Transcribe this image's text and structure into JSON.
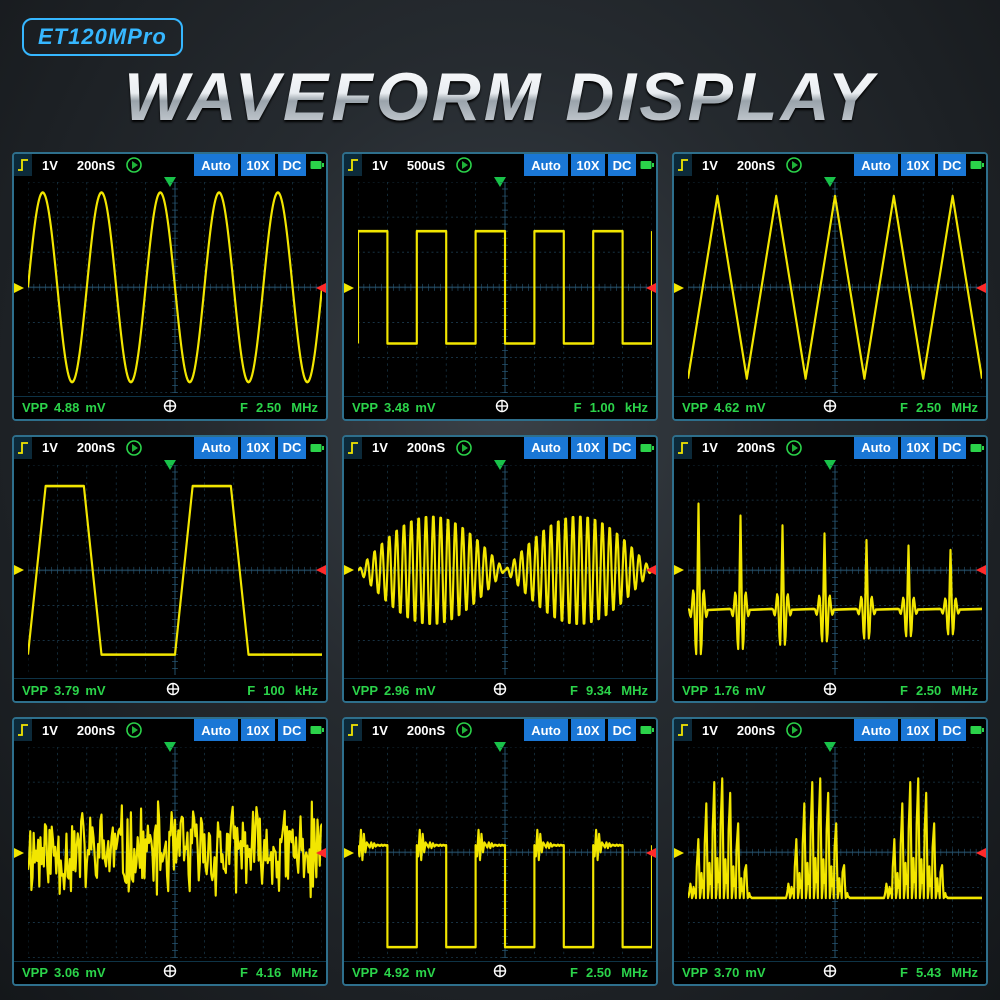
{
  "model_badge": "ET120MPro",
  "main_title": "WAVEFORM DISPLAY",
  "colors": {
    "background_gradient": [
      "#3a4148",
      "#262b30",
      "#14171a"
    ],
    "badge": "#36b7ff",
    "scope_border": "#2e6f8c",
    "scope_bg": "#000000",
    "grid_line": "#1b3a4d",
    "axis_tick": "#2a5a78",
    "waveform": "#f2e600",
    "topbar_pill": "#1a77d6",
    "topbar_text": "#ffffff",
    "readout": "#2bd34a",
    "play_outline": "#2bd34a",
    "play_fill": "#1fb038",
    "battery": "#2bd34a",
    "trigger_marker": "#19c24a",
    "zero_marker_left": "#f2e600",
    "zero_marker_right": "#ff2a2a",
    "edge_icon": "#f2e600"
  },
  "plot_grid": {
    "cols": 10,
    "rows": 6,
    "xlim": [
      0,
      10
    ],
    "ylim": [
      -3,
      3
    ]
  },
  "scopes": [
    {
      "voltage_div": "1V",
      "time_div": "200nS",
      "mode": "Auto",
      "probe": "10X",
      "coupling": "DC",
      "vpp_label": "VPP",
      "vpp_value": "4.88",
      "vpp_unit": "mV",
      "f_label": "F",
      "f_value": "2.50",
      "f_unit": "MHz",
      "wave": {
        "type": "sine",
        "amplitude": 2.7,
        "cycles": 5,
        "phase": 0
      }
    },
    {
      "voltage_div": "1V",
      "time_div": "500uS",
      "mode": "Auto",
      "probe": "10X",
      "coupling": "DC",
      "vpp_label": "VPP",
      "vpp_value": "3.48",
      "vpp_unit": "mV",
      "f_label": "F",
      "f_value": "1.00",
      "f_unit": "kHz",
      "wave": {
        "type": "square",
        "amplitude": 1.6,
        "cycles": 5,
        "duty": 0.5
      }
    },
    {
      "voltage_div": "1V",
      "time_div": "200nS",
      "mode": "Auto",
      "probe": "10X",
      "coupling": "DC",
      "vpp_label": "VPP",
      "vpp_value": "4.62",
      "vpp_unit": "mV",
      "f_label": "F",
      "f_value": "2.50",
      "f_unit": "MHz",
      "wave": {
        "type": "triangle",
        "amplitude": 2.6,
        "cycles": 5
      }
    },
    {
      "voltage_div": "1V",
      "time_div": "200nS",
      "mode": "Auto",
      "probe": "10X",
      "coupling": "DC",
      "vpp_label": "VPP",
      "vpp_value": "3.79",
      "vpp_unit": "mV",
      "f_label": "F",
      "f_value": "100",
      "f_unit": "kHz",
      "wave": {
        "type": "trapezoid",
        "amplitude": 2.4,
        "cycles": 2,
        "rise": 0.12,
        "flat": 0.26
      }
    },
    {
      "voltage_div": "1V",
      "time_div": "200nS",
      "mode": "Auto",
      "probe": "10X",
      "coupling": "DC",
      "vpp_label": "VPP",
      "vpp_value": "2.96",
      "vpp_unit": "mV",
      "f_label": "F",
      "f_value": "9.34",
      "f_unit": "MHz",
      "wave": {
        "type": "am",
        "carrier_cycles": 40,
        "envelope_cycles": 2,
        "amplitude": 1.6
      }
    },
    {
      "voltage_div": "1V",
      "time_div": "200nS",
      "mode": "Auto",
      "probe": "10X",
      "coupling": "DC",
      "vpp_label": "VPP",
      "vpp_value": "1.76",
      "vpp_unit": "mV",
      "f_label": "F",
      "f_value": "2.50",
      "f_unit": "MHz",
      "wave": {
        "type": "spikes",
        "count": 7,
        "base": -1.1,
        "peak": 1.9,
        "decay": 1.0
      }
    },
    {
      "voltage_div": "1V",
      "time_div": "200nS",
      "mode": "Auto",
      "probe": "10X",
      "coupling": "DC",
      "vpp_label": "VPP",
      "vpp_value": "3.06",
      "vpp_unit": "mV",
      "f_label": "F",
      "f_value": "4.16",
      "f_unit": "MHz",
      "wave": {
        "type": "noise",
        "amplitude": 1.5,
        "samples": 260,
        "seed": 11
      }
    },
    {
      "voltage_div": "1V",
      "time_div": "200nS",
      "mode": "Auto",
      "probe": "10X",
      "coupling": "DC",
      "vpp_label": "VPP",
      "vpp_value": "4.92",
      "vpp_unit": "mV",
      "f_label": "F",
      "f_value": "2.50",
      "f_unit": "MHz",
      "wave": {
        "type": "ringing_square",
        "cycles": 5,
        "high": 0.2,
        "low": -2.7,
        "ring_amp": 0.9,
        "ring_freq": 6
      }
    },
    {
      "voltage_div": "1V",
      "time_div": "200nS",
      "mode": "Auto",
      "probe": "10X",
      "coupling": "DC",
      "vpp_label": "VPP",
      "vpp_value": "3.70",
      "vpp_unit": "mV",
      "f_label": "F",
      "f_value": "5.43",
      "f_unit": "MHz",
      "wave": {
        "type": "burst",
        "groups": 3,
        "per_group": 8,
        "amplitude": 2.4,
        "base": -1.3,
        "gap": 0.35
      }
    }
  ]
}
